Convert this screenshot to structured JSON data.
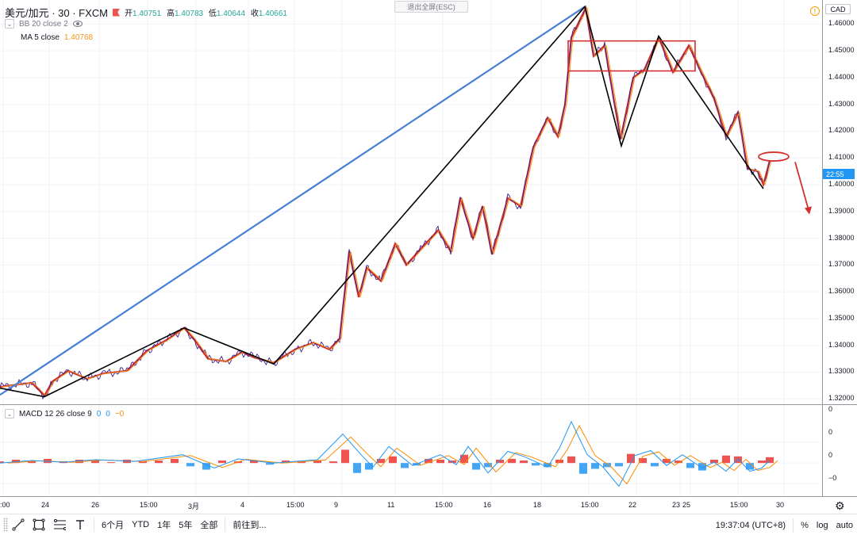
{
  "header": {
    "symbol_title": "美元/加元 · 30 · FXCM",
    "ohlc": [
      {
        "label": "开",
        "value": "1.40751"
      },
      {
        "label": "高",
        "value": "1.40783"
      },
      {
        "label": "低",
        "value": "1.40644"
      },
      {
        "label": "收",
        "value": "1.40661"
      }
    ],
    "bb_label": "BB 20 close 2",
    "ma_label": "MA 5 close",
    "ma_value": "1.40768",
    "macd_label": "MACD 12 26 close 9",
    "macd_values": [
      "0",
      "0",
      "−0"
    ],
    "exit_fullscreen": "退出全屏(ESC)",
    "warning_glyph": "!"
  },
  "price_axis": {
    "currency": "CAD",
    "labels": [
      "1.46000",
      "1.45000",
      "1.44000",
      "1.43000",
      "1.42000",
      "1.41000",
      "1.40000",
      "1.39000",
      "1.38000",
      "1.37000",
      "1.36000",
      "1.35000",
      "1.34000",
      "1.33000",
      "1.32000"
    ],
    "countdown": "22:55"
  },
  "macd_axis": {
    "labels": [
      "0",
      "0",
      "0",
      "−0"
    ]
  },
  "time_axis": {
    "labels": [
      ":00",
      "24",
      "26",
      "15:00",
      "3月",
      "4",
      "15:00",
      "9",
      "11",
      "15:00",
      "16",
      "18",
      "15:00",
      "22",
      "23",
      "25",
      "15:00",
      "30"
    ]
  },
  "toolbar": {
    "ranges": [
      "6个月",
      "YTD",
      "1年",
      "5年",
      "全部"
    ],
    "goto": "前往到...",
    "clock": "19:37:04 (UTC+8)",
    "percent": "%",
    "log": "log",
    "auto": "auto"
  },
  "colors": {
    "price": "#3f1f8f",
    "ma": "#f7931a",
    "bb": "#d32f2f",
    "zigzag_black": "#000000",
    "trend_blue": "#4a7fd6",
    "macd_line": "#2196f3",
    "signal_line": "#ff8a00",
    "hist_pos": "#ef5350",
    "hist_neg": "#42a5f5",
    "axis_text": "#131722"
  },
  "chart_data": {
    "type": "line",
    "ylim": [
      1.318,
      1.469
    ],
    "price_path": [
      [
        0,
        1.3245
      ],
      [
        40,
        1.326
      ],
      [
        56,
        1.3212
      ],
      [
        66,
        1.3265
      ],
      [
        86,
        1.3305
      ],
      [
        110,
        1.3275
      ],
      [
        130,
        1.3295
      ],
      [
        160,
        1.3305
      ],
      [
        185,
        1.338
      ],
      [
        210,
        1.342
      ],
      [
        232,
        1.3465
      ],
      [
        245,
        1.342
      ],
      [
        262,
        1.335
      ],
      [
        285,
        1.334
      ],
      [
        305,
        1.3375
      ],
      [
        320,
        1.3355
      ],
      [
        345,
        1.3335
      ],
      [
        372,
        1.3385
      ],
      [
        395,
        1.341
      ],
      [
        415,
        1.3385
      ],
      [
        428,
        1.3425
      ],
      [
        440,
        1.375
      ],
      [
        452,
        1.358
      ],
      [
        462,
        1.369
      ],
      [
        480,
        1.364
      ],
      [
        498,
        1.378
      ],
      [
        512,
        1.37
      ],
      [
        530,
        1.376
      ],
      [
        552,
        1.383
      ],
      [
        568,
        1.375
      ],
      [
        580,
        1.395
      ],
      [
        596,
        1.38
      ],
      [
        608,
        1.392
      ],
      [
        620,
        1.374
      ],
      [
        640,
        1.395
      ],
      [
        656,
        1.392
      ],
      [
        672,
        1.414
      ],
      [
        690,
        1.425
      ],
      [
        703,
        1.418
      ],
      [
        712,
        1.43
      ],
      [
        720,
        1.455
      ],
      [
        738,
        1.466
      ],
      [
        748,
        1.448
      ],
      [
        762,
        1.452
      ],
      [
        782,
        1.417
      ],
      [
        798,
        1.44
      ],
      [
        812,
        1.443
      ],
      [
        830,
        1.455
      ],
      [
        848,
        1.442
      ],
      [
        868,
        1.452
      ],
      [
        882,
        1.443
      ],
      [
        900,
        1.432
      ],
      [
        915,
        1.418
      ],
      [
        930,
        1.427
      ],
      [
        942,
        1.406
      ],
      [
        955,
        1.405
      ],
      [
        962,
        1.4
      ],
      [
        970,
        1.409
      ]
    ],
    "trend_blue": [
      [
        0,
        1.3215
      ],
      [
        737,
        1.4665
      ]
    ],
    "zigzag": [
      [
        0,
        1.324
      ],
      [
        56,
        1.3208
      ],
      [
        232,
        1.3465
      ],
      [
        345,
        1.333
      ],
      [
        737,
        1.4665
      ],
      [
        783,
        1.4145
      ],
      [
        830,
        1.4555
      ],
      [
        962,
        1.3985
      ]
    ],
    "box": {
      "x1": 716,
      "x2": 876,
      "y_top": 1.4537,
      "y_bottom": 1.4425
    },
    "ellipse": {
      "x": 975,
      "y": 1.4105
    },
    "arrow": {
      "from": [
        1002,
        1.4085
      ],
      "to": [
        1020,
        1.3895
      ]
    },
    "macd": [
      [
        0,
        0
      ],
      [
        40,
        0.3
      ],
      [
        80,
        0.1
      ],
      [
        120,
        0.4
      ],
      [
        170,
        0.2
      ],
      [
        230,
        1.0
      ],
      [
        270,
        -0.6
      ],
      [
        300,
        0.5
      ],
      [
        345,
        0
      ],
      [
        400,
        0.4
      ],
      [
        432,
        3.5
      ],
      [
        455,
        1.0
      ],
      [
        470,
        -0.5
      ],
      [
        490,
        2.0
      ],
      [
        520,
        -0.3
      ],
      [
        555,
        1.0
      ],
      [
        575,
        -0.2
      ],
      [
        590,
        2.0
      ],
      [
        615,
        -1.2
      ],
      [
        640,
        1.4
      ],
      [
        660,
        0.8
      ],
      [
        690,
        -0.5
      ],
      [
        705,
        1.8
      ],
      [
        720,
        5.0
      ],
      [
        740,
        1.0
      ],
      [
        760,
        -0.5
      ],
      [
        780,
        -2.8
      ],
      [
        800,
        0.9
      ],
      [
        820,
        1.5
      ],
      [
        840,
        -0.3
      ],
      [
        860,
        1.0
      ],
      [
        885,
        -0.6
      ],
      [
        900,
        0.1
      ],
      [
        915,
        -1.0
      ],
      [
        930,
        0.5
      ],
      [
        945,
        -1.0
      ],
      [
        960,
        -0.6
      ],
      [
        970,
        0.3
      ]
    ],
    "signal_shift": 10,
    "hist": [
      [
        0,
        0.2
      ],
      [
        20,
        0.4
      ],
      [
        40,
        0.2
      ],
      [
        60,
        0.5
      ],
      [
        80,
        0.2
      ],
      [
        100,
        0.4
      ],
      [
        120,
        0.3
      ],
      [
        140,
        0.1
      ],
      [
        160,
        0.4
      ],
      [
        180,
        0.2
      ],
      [
        200,
        0.3
      ],
      [
        220,
        0.5
      ],
      [
        240,
        -0.4
      ],
      [
        260,
        -0.8
      ],
      [
        280,
        0.3
      ],
      [
        300,
        0.2
      ],
      [
        320,
        0.3
      ],
      [
        340,
        -0.2
      ],
      [
        360,
        0.3
      ],
      [
        380,
        0.2
      ],
      [
        400,
        0.3
      ],
      [
        420,
        0.2
      ],
      [
        435,
        1.6
      ],
      [
        450,
        -1.2
      ],
      [
        465,
        -0.8
      ],
      [
        480,
        0.5
      ],
      [
        495,
        0.8
      ],
      [
        510,
        -0.6
      ],
      [
        525,
        -0.3
      ],
      [
        540,
        0.5
      ],
      [
        555,
        0.4
      ],
      [
        570,
        0.3
      ],
      [
        585,
        1.0
      ],
      [
        600,
        -0.8
      ],
      [
        615,
        -0.5
      ],
      [
        630,
        0.4
      ],
      [
        645,
        0.5
      ],
      [
        660,
        0.3
      ],
      [
        675,
        -0.3
      ],
      [
        690,
        -0.5
      ],
      [
        705,
        0.4
      ],
      [
        720,
        0.8
      ],
      [
        735,
        -1.3
      ],
      [
        750,
        -0.7
      ],
      [
        765,
        -0.5
      ],
      [
        780,
        -0.4
      ],
      [
        795,
        1.1
      ],
      [
        810,
        0.6
      ],
      [
        825,
        -0.4
      ],
      [
        840,
        0.5
      ],
      [
        855,
        0.3
      ],
      [
        870,
        -0.6
      ],
      [
        885,
        -0.9
      ],
      [
        900,
        0.4
      ],
      [
        915,
        0.9
      ],
      [
        930,
        0.8
      ],
      [
        945,
        -0.8
      ],
      [
        960,
        0.3
      ],
      [
        970,
        0.7
      ]
    ],
    "macd_ylim": [
      -4,
      7
    ]
  }
}
